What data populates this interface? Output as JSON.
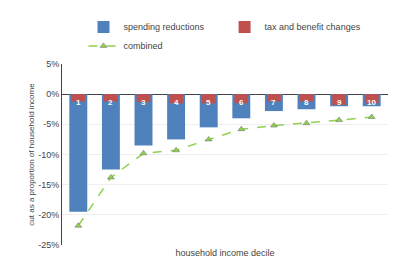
{
  "chart_data": {
    "type": "bar",
    "categories": [
      1,
      2,
      3,
      4,
      5,
      6,
      7,
      8,
      9,
      10
    ],
    "series": [
      {
        "name": "spending reductions",
        "type": "bar",
        "color": "#4f81bd",
        "values": [
          -19.5,
          -12.5,
          -8.5,
          -7.5,
          -5.5,
          -4.0,
          -2.8,
          -2.5,
          -2.0,
          -2.0
        ]
      },
      {
        "name": "tax and benefit changes",
        "type": "bar",
        "color": "#c0504d",
        "values": [
          -1.2,
          -1.2,
          -1.3,
          -1.5,
          -1.5,
          -1.5,
          -1.2,
          -1.2,
          -1.8,
          -1.5
        ]
      },
      {
        "name": "combined",
        "type": "line",
        "color": "#92d050",
        "marker": "triangle",
        "line_style": "dashed",
        "values": [
          -21.8,
          -13.8,
          -9.8,
          -9.3,
          -7.5,
          -5.8,
          -5.2,
          -4.8,
          -4.3,
          -3.8
        ]
      }
    ],
    "xlabel": "household income decile",
    "ylabel": "cut as a proportion of household income",
    "ylim": [
      -25,
      5
    ],
    "yticks": [
      {
        "value": 5,
        "label": "5%"
      },
      {
        "value": 0,
        "label": "0%"
      },
      {
        "value": -5,
        "label": "-5%"
      },
      {
        "value": -10,
        "label": "-10%"
      },
      {
        "value": -15,
        "label": "-15%"
      },
      {
        "value": -20,
        "label": "-20%"
      },
      {
        "value": -25,
        "label": "-25%"
      }
    ],
    "grid": true,
    "legend": "top",
    "tick_labels": "y"
  }
}
